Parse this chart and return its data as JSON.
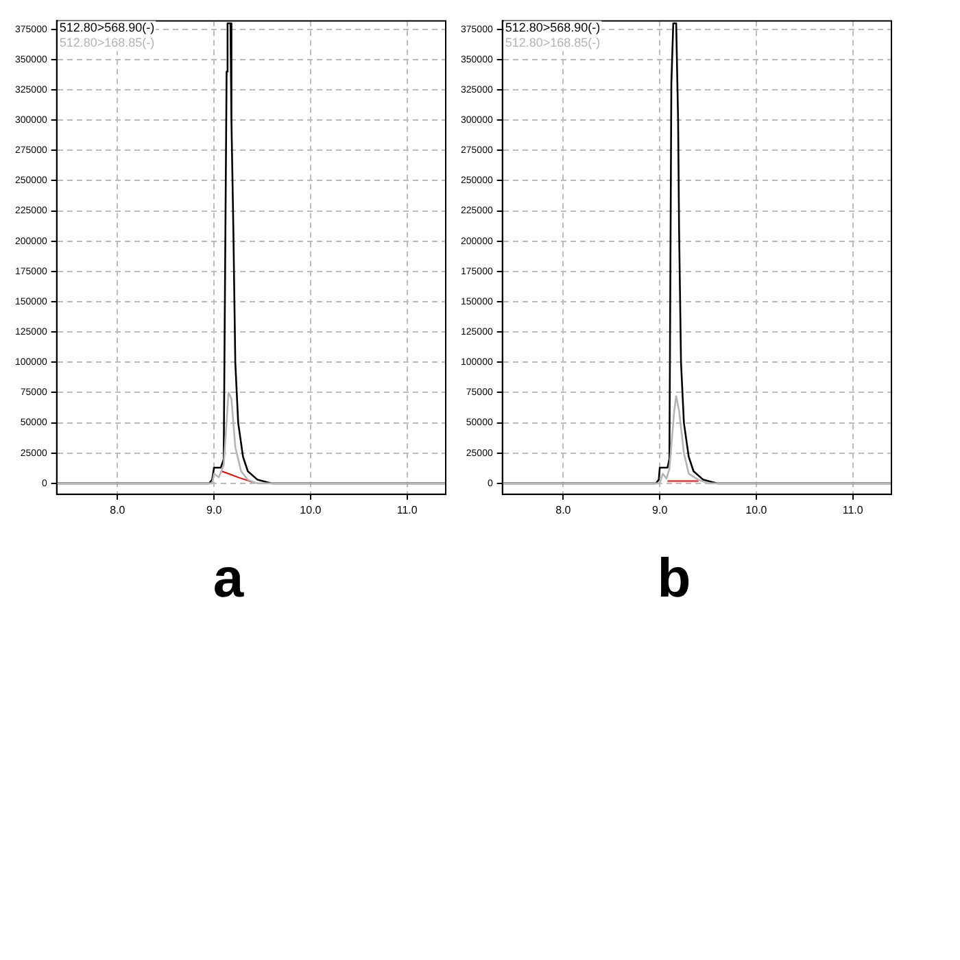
{
  "chart_data": [
    {
      "type": "line",
      "title": "a",
      "legend": "top left",
      "grid": true,
      "marker": "none",
      "line_style": "solid",
      "xlim": [
        7.37,
        11.4
      ],
      "xticks": [
        {
          "value": 8,
          "label": "8.0"
        },
        {
          "value": 9,
          "label": "9.0"
        },
        {
          "value": 10,
          "label": "10.0"
        },
        {
          "value": 11,
          "label": "11.0"
        }
      ],
      "ylim": [
        -9000,
        382000
      ],
      "yticks": [
        0,
        25000,
        50000,
        75000,
        100000,
        125000,
        150000,
        175000,
        200000,
        225000,
        250000,
        275000,
        300000,
        325000,
        350000,
        375000
      ],
      "series": [
        {
          "name": "512.80>168.85(-)",
          "color": "#b4b4b4",
          "x": [
            7.37,
            8.98,
            9.0,
            9.05,
            9.1,
            9.15,
            9.18,
            9.22,
            9.28,
            9.35,
            9.45,
            11.4
          ],
          "values": [
            0,
            0,
            8000,
            5000,
            15000,
            75000,
            70000,
            30000,
            10000,
            3000,
            0,
            0
          ]
        },
        {
          "name": "512.80>568.90(-)",
          "color": "#000000",
          "x": [
            7.37,
            8.95,
            8.98,
            9.0,
            9.07,
            9.1,
            9.13,
            9.14,
            9.17,
            9.18,
            9.2,
            9.22,
            9.25,
            9.3,
            9.35,
            9.45,
            9.55,
            9.6,
            11.4
          ],
          "values": [
            0,
            0,
            3000,
            13000,
            13000,
            20000,
            340000,
            380000,
            380000,
            300000,
            210000,
            100000,
            50000,
            22000,
            10000,
            3000,
            1000,
            0,
            0
          ]
        },
        {
          "color": "#ff0000",
          "x": [
            9.08,
            9.15,
            9.25,
            9.4
          ],
          "values": [
            10000,
            8000,
            5000,
            1000
          ]
        }
      ]
    },
    {
      "type": "line",
      "title": "b",
      "legend": "top left",
      "grid": true,
      "marker": "none",
      "line_style": "solid",
      "xlim": [
        7.37,
        11.4
      ],
      "xticks": [
        {
          "value": 8,
          "label": "8.0"
        },
        {
          "value": 9,
          "label": "9.0"
        },
        {
          "value": 10,
          "label": "10.0"
        },
        {
          "value": 11,
          "label": "11.0"
        }
      ],
      "ylim": [
        -9000,
        382000
      ],
      "yticks": [
        0,
        25000,
        50000,
        75000,
        100000,
        125000,
        150000,
        175000,
        200000,
        225000,
        250000,
        275000,
        300000,
        325000,
        350000,
        375000
      ],
      "series": [
        {
          "name": "512.80>168.85(-)",
          "color": "#b4b4b4",
          "x": [
            7.37,
            9.0,
            9.03,
            9.07,
            9.1,
            9.15,
            9.17,
            9.2,
            9.25,
            9.3,
            9.4,
            9.5,
            11.4
          ],
          "values": [
            0,
            0,
            8000,
            4000,
            12000,
            60000,
            72000,
            60000,
            25000,
            8000,
            3000,
            0,
            0
          ]
        },
        {
          "name": "512.80>568.90(-)",
          "color": "#000000",
          "x": [
            7.37,
            8.96,
            8.99,
            9.0,
            9.08,
            9.1,
            9.12,
            9.14,
            9.17,
            9.19,
            9.2,
            9.22,
            9.25,
            9.3,
            9.35,
            9.45,
            9.55,
            9.6,
            11.4
          ],
          "values": [
            0,
            0,
            3000,
            13000,
            13000,
            20000,
            330000,
            380000,
            380000,
            300000,
            210000,
            100000,
            50000,
            22000,
            10000,
            3000,
            1000,
            0,
            0
          ]
        },
        {
          "color": "#ff0000",
          "x": [
            9.08,
            9.4
          ],
          "values": [
            2000,
            2000
          ]
        }
      ]
    }
  ]
}
